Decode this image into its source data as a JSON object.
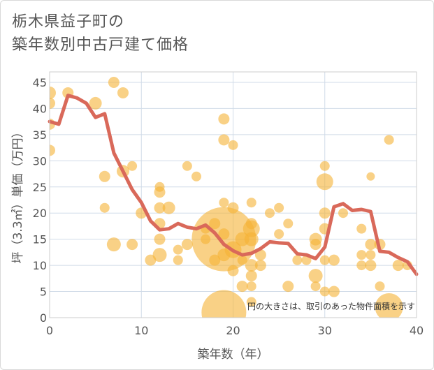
{
  "title_lines": [
    "栃木県益子町の",
    "築年数別中古戸建て価格"
  ],
  "note": "円の大きさは、取引のあった物件面積を示す",
  "colors": {
    "bubble": "#f5b335",
    "line": "#d9695a",
    "grid": "#d0dbe8",
    "plot_border": "#cccccc"
  },
  "chart_data": {
    "type": "scatter",
    "xlabel": "築年数（年）",
    "ylabel": "坪（3.3㎡）単価（万円）",
    "xlim": [
      0,
      40
    ],
    "ylim": [
      0,
      47
    ],
    "xticks": [
      0,
      10,
      20,
      30,
      40
    ],
    "yticks": [
      0,
      5,
      10,
      15,
      20,
      25,
      30,
      35,
      40,
      45
    ],
    "grid": true,
    "bubbles": [
      {
        "x": 0,
        "y": 43,
        "s": 9
      },
      {
        "x": 0,
        "y": 41,
        "s": 8
      },
      {
        "x": 0,
        "y": 37,
        "s": 8
      },
      {
        "x": 0,
        "y": 32,
        "s": 8
      },
      {
        "x": 2,
        "y": 43,
        "s": 8
      },
      {
        "x": 5,
        "y": 41,
        "s": 9
      },
      {
        "x": 7,
        "y": 45,
        "s": 8
      },
      {
        "x": 8,
        "y": 43,
        "s": 8
      },
      {
        "x": 6,
        "y": 27,
        "s": 8
      },
      {
        "x": 8,
        "y": 28,
        "s": 9
      },
      {
        "x": 9,
        "y": 29,
        "s": 7
      },
      {
        "x": 6,
        "y": 21,
        "s": 7
      },
      {
        "x": 7,
        "y": 14,
        "s": 10
      },
      {
        "x": 9,
        "y": 14,
        "s": 8
      },
      {
        "x": 10,
        "y": 20,
        "s": 8
      },
      {
        "x": 11,
        "y": 11,
        "s": 8
      },
      {
        "x": 12,
        "y": 25,
        "s": 7
      },
      {
        "x": 12,
        "y": 24,
        "s": 8
      },
      {
        "x": 12,
        "y": 21,
        "s": 8
      },
      {
        "x": 12,
        "y": 18,
        "s": 8
      },
      {
        "x": 12,
        "y": 15,
        "s": 8
      },
      {
        "x": 12,
        "y": 12,
        "s": 10
      },
      {
        "x": 13,
        "y": 21,
        "s": 9
      },
      {
        "x": 14,
        "y": 13,
        "s": 7
      },
      {
        "x": 14,
        "y": 11,
        "s": 7
      },
      {
        "x": 15,
        "y": 29,
        "s": 7
      },
      {
        "x": 15,
        "y": 14,
        "s": 8
      },
      {
        "x": 16,
        "y": 27,
        "s": 7
      },
      {
        "x": 17,
        "y": 15,
        "s": 7
      },
      {
        "x": 17,
        "y": 17,
        "s": 7
      },
      {
        "x": 18,
        "y": 18,
        "s": 8
      },
      {
        "x": 18,
        "y": 11,
        "s": 8
      },
      {
        "x": 19,
        "y": 38,
        "s": 8
      },
      {
        "x": 19,
        "y": 34,
        "s": 8
      },
      {
        "x": 19,
        "y": 22,
        "s": 7
      },
      {
        "x": 19,
        "y": 16,
        "s": 8
      },
      {
        "x": 19,
        "y": 15,
        "s": 46
      },
      {
        "x": 19,
        "y": 12,
        "s": 9
      },
      {
        "x": 19,
        "y": 1,
        "s": 32
      },
      {
        "x": 20,
        "y": 33,
        "s": 7
      },
      {
        "x": 20,
        "y": 21,
        "s": 8
      },
      {
        "x": 20,
        "y": 13,
        "s": 12
      },
      {
        "x": 20,
        "y": 9,
        "s": 8
      },
      {
        "x": 21,
        "y": 6,
        "s": 8
      },
      {
        "x": 21,
        "y": 11,
        "s": 7
      },
      {
        "x": 21,
        "y": 15,
        "s": 10
      },
      {
        "x": 22,
        "y": 22,
        "s": 7
      },
      {
        "x": 22,
        "y": 18,
        "s": 8
      },
      {
        "x": 22,
        "y": 17,
        "s": 12
      },
      {
        "x": 22,
        "y": 15,
        "s": 10
      },
      {
        "x": 22,
        "y": 10,
        "s": 9
      },
      {
        "x": 22,
        "y": 8,
        "s": 8
      },
      {
        "x": 22,
        "y": 6,
        "s": 7
      },
      {
        "x": 22,
        "y": 3,
        "s": 7
      },
      {
        "x": 23,
        "y": 12,
        "s": 8
      },
      {
        "x": 23,
        "y": 10,
        "s": 8
      },
      {
        "x": 24,
        "y": 20,
        "s": 7
      },
      {
        "x": 25,
        "y": 21,
        "s": 7
      },
      {
        "x": 25,
        "y": 16,
        "s": 7
      },
      {
        "x": 26,
        "y": 18,
        "s": 7
      },
      {
        "x": 26,
        "y": 6,
        "s": 8
      },
      {
        "x": 27,
        "y": 11,
        "s": 7
      },
      {
        "x": 28,
        "y": 11,
        "s": 7
      },
      {
        "x": 29,
        "y": 15,
        "s": 9
      },
      {
        "x": 29,
        "y": 14,
        "s": 8
      },
      {
        "x": 29,
        "y": 8,
        "s": 10
      },
      {
        "x": 29,
        "y": 6,
        "s": 7
      },
      {
        "x": 30,
        "y": 29,
        "s": 7
      },
      {
        "x": 30,
        "y": 26,
        "s": 12
      },
      {
        "x": 30,
        "y": 20,
        "s": 8
      },
      {
        "x": 30,
        "y": 17,
        "s": 8
      },
      {
        "x": 30,
        "y": 11,
        "s": 7
      },
      {
        "x": 30,
        "y": 5,
        "s": 7
      },
      {
        "x": 31,
        "y": 11,
        "s": 8
      },
      {
        "x": 31,
        "y": 5,
        "s": 8
      },
      {
        "x": 32,
        "y": 20,
        "s": 7
      },
      {
        "x": 34,
        "y": 17,
        "s": 7
      },
      {
        "x": 34,
        "y": 12,
        "s": 7
      },
      {
        "x": 34,
        "y": 10,
        "s": 7
      },
      {
        "x": 35,
        "y": 27,
        "s": 6
      },
      {
        "x": 35,
        "y": 14,
        "s": 8
      },
      {
        "x": 35,
        "y": 12,
        "s": 7
      },
      {
        "x": 35,
        "y": 10,
        "s": 8
      },
      {
        "x": 36,
        "y": 14,
        "s": 8
      },
      {
        "x": 36,
        "y": 6,
        "s": 7
      },
      {
        "x": 37,
        "y": 34,
        "s": 7
      },
      {
        "x": 37,
        "y": 2,
        "s": 20
      },
      {
        "x": 38,
        "y": 10,
        "s": 8
      },
      {
        "x": 39,
        "y": 10,
        "s": 7
      }
    ],
    "trend": [
      [
        0,
        37.5
      ],
      [
        1,
        37
      ],
      [
        2,
        42.5
      ],
      [
        3,
        42
      ],
      [
        4,
        41
      ],
      [
        5,
        38.3
      ],
      [
        6,
        39
      ],
      [
        7,
        31.5
      ],
      [
        8,
        28
      ],
      [
        9,
        24.5
      ],
      [
        10,
        22
      ],
      [
        11,
        18.5
      ],
      [
        12,
        16.8
      ],
      [
        13,
        17
      ],
      [
        14,
        18
      ],
      [
        15,
        17.3
      ],
      [
        16,
        17
      ],
      [
        17,
        17.7
      ],
      [
        18,
        16.2
      ],
      [
        19,
        14
      ],
      [
        20,
        12.8
      ],
      [
        21,
        12
      ],
      [
        22,
        12.3
      ],
      [
        23,
        13.2
      ],
      [
        24,
        14.5
      ],
      [
        25,
        14.3
      ],
      [
        26,
        14.2
      ],
      [
        27,
        12.2
      ],
      [
        28,
        12
      ],
      [
        29,
        11.3
      ],
      [
        30,
        13.5
      ],
      [
        31,
        21.2
      ],
      [
        32,
        21.8
      ],
      [
        33,
        20.5
      ],
      [
        34,
        20.7
      ],
      [
        35,
        20.3
      ],
      [
        36,
        12.7
      ],
      [
        37,
        12.5
      ],
      [
        38,
        11.5
      ],
      [
        39,
        10.7
      ],
      [
        40,
        8.3
      ]
    ]
  }
}
